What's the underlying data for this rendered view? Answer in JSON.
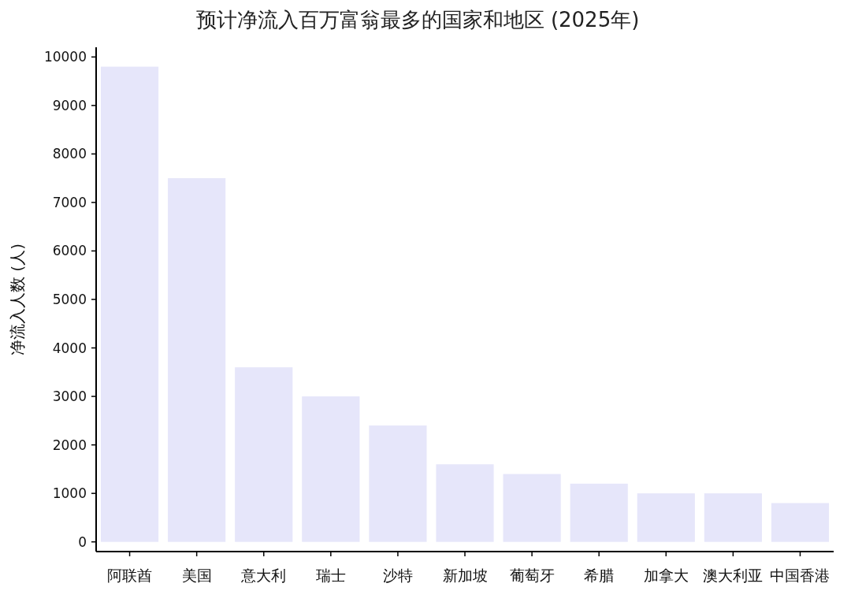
{
  "chart_data": {
    "type": "bar",
    "title": "预计净流入百万富翁最多的国家和地区 (2025年)",
    "ylabel": "净流入人数 (人)",
    "categories": [
      "阿联酋",
      "美国",
      "意大利",
      "瑞士",
      "沙特",
      "新加坡",
      "葡萄牙",
      "希腊",
      "加拿大",
      "澳大利亚",
      "中国香港"
    ],
    "values": [
      9800,
      7500,
      3600,
      3000,
      2400,
      1600,
      1400,
      1200,
      1000,
      1000,
      800
    ],
    "color": "#e6e6fa",
    "ylim": [
      -200,
      10200
    ],
    "yticks": [
      0,
      1000,
      2000,
      3000,
      4000,
      5000,
      6000,
      7000,
      8000,
      9000,
      10000
    ],
    "grid": false
  }
}
